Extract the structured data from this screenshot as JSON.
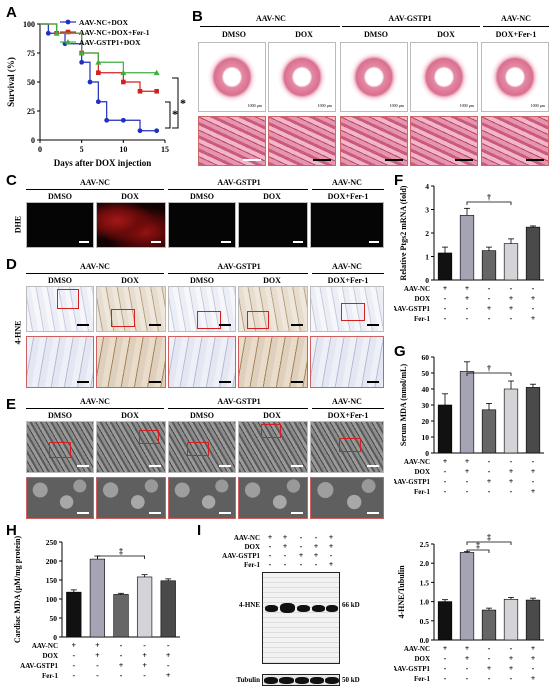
{
  "panels": {
    "A": "A",
    "B": "B",
    "C": "C",
    "D": "D",
    "E": "E",
    "F": "F",
    "G": "G",
    "H": "H",
    "I": "I"
  },
  "groups": {
    "nc": "AAV-NC",
    "gstp1": "AAV-GSTP1",
    "dmso": "DMSO",
    "dox": "DOX",
    "doxfer": "DOX+Fer-1"
  },
  "rows": {
    "dhe": "DHE",
    "hne": "4-HNE"
  },
  "scalebar": "1000 µm",
  "cond_labels": [
    "AAV-NC",
    "DOX",
    "AAV-GSTP1",
    "Fer-1"
  ],
  "cond_matrix": [
    [
      "+",
      "+",
      "-",
      "-",
      "-"
    ],
    [
      "-",
      "+",
      "-",
      "+",
      "+"
    ],
    [
      "-",
      "-",
      "+",
      "+",
      "-"
    ],
    [
      "-",
      "-",
      "-",
      "-",
      "+"
    ]
  ],
  "cond_matrix_3": [
    [
      "+",
      "+",
      "-",
      "-",
      "+"
    ],
    [
      "-",
      "+",
      "-",
      "+",
      "+"
    ],
    [
      "-",
      "-",
      "+",
      "+",
      "-"
    ],
    [
      "-",
      "-",
      "-",
      "-",
      "+"
    ]
  ],
  "significance": {
    "dagger": "†",
    "ddagger": "‡",
    "star": "*"
  },
  "blot": {
    "hne": "4-HNE",
    "tubulin": "Tubulin",
    "kd66": "66 kD",
    "kd50": "50 kD"
  },
  "chart_data": [
    {
      "type": "line",
      "panel": "A",
      "xlabel": "Days after DOX injection",
      "ylabel": "Survival (%)",
      "xlim": [
        0,
        15
      ],
      "ylim": [
        0,
        100
      ],
      "xticks": [
        0,
        5,
        10,
        15
      ],
      "yticks": [
        0,
        25,
        50,
        75,
        100
      ],
      "legend": "top-right",
      "series": [
        {
          "name": "AAV-NC+DOX",
          "color": "#1f2fbf",
          "x": [
            0,
            1,
            3,
            5,
            6,
            7,
            8,
            10,
            12,
            14
          ],
          "y": [
            100,
            92,
            83,
            67,
            50,
            33,
            17,
            17,
            8,
            8
          ]
        },
        {
          "name": "AAV-NC+DOX+Fer-1",
          "color": "#d42020",
          "x": [
            0,
            2,
            5,
            7,
            10,
            12,
            14
          ],
          "y": [
            100,
            92,
            75,
            58,
            50,
            42,
            42
          ]
        },
        {
          "name": "AAV-GSTP1+DOX",
          "color": "#3fae3f",
          "x": [
            0,
            2,
            5,
            7,
            10,
            14
          ],
          "y": [
            100,
            92,
            75,
            67,
            58,
            58
          ]
        }
      ]
    },
    {
      "type": "bar",
      "panel": "F",
      "ylabel": "Relative Ptgs2 mRNA (fold)",
      "ylim": [
        0,
        4
      ],
      "yticks": [
        0,
        1,
        2,
        3,
        4
      ],
      "values": [
        1.15,
        2.75,
        1.25,
        1.55,
        2.25
      ],
      "errors": [
        0.25,
        0.3,
        0.15,
        0.2,
        0.05
      ]
    },
    {
      "type": "bar",
      "panel": "G",
      "ylabel": "Serum MDA (nmol/mL)",
      "ylim": [
        0,
        60
      ],
      "yticks": [
        0,
        10,
        20,
        30,
        40,
        50,
        60
      ],
      "values": [
        30,
        51,
        27,
        40,
        41
      ],
      "errors": [
        7,
        6,
        4,
        5,
        2
      ]
    },
    {
      "type": "bar",
      "panel": "H",
      "ylabel": "Cardiac MDA (µM/mg protein)",
      "ylim": [
        0,
        250
      ],
      "yticks": [
        0,
        50,
        100,
        150,
        200,
        250
      ],
      "values": [
        118,
        205,
        112,
        158,
        148
      ],
      "errors": [
        6,
        8,
        3,
        6,
        5
      ]
    },
    {
      "type": "bar",
      "panel": "I",
      "ylabel": "4-HNE/Tubulin",
      "ylim": [
        0,
        2.5
      ],
      "yticks": [
        0.0,
        0.5,
        1.0,
        1.5,
        2.0,
        2.5
      ],
      "values": [
        1.0,
        2.28,
        0.78,
        1.06,
        1.04
      ],
      "errors": [
        0.05,
        0.02,
        0.05,
        0.05,
        0.05
      ]
    }
  ],
  "bar_colors": [
    "#111111",
    "#a4a4b4",
    "#666666",
    "#d4d4d8",
    "#4a4a4a"
  ]
}
